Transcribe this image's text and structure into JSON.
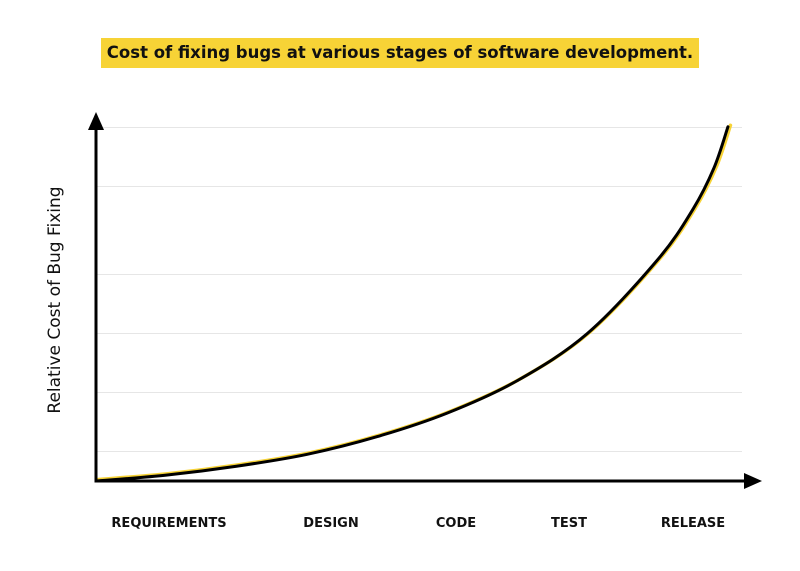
{
  "chart_data": {
    "type": "line",
    "title": "Cost of fixing bugs at various stages of software development.",
    "xlabel": "",
    "ylabel": "Relative Cost of Bug Fixing",
    "categories": [
      "REQUIREMENTS",
      "DESIGN",
      "CODE",
      "TEST",
      "RELEASE"
    ],
    "series": [
      {
        "x": [
          0,
          0.5,
          1,
          1.5,
          2,
          2.5,
          3,
          3.5,
          4,
          4.25,
          4.4,
          4.5
        ],
        "values": [
          0,
          0.2,
          0.5,
          0.9,
          1.5,
          2.3,
          3.4,
          5.0,
          7.5,
          9.2,
          10.6,
          12.0
        ]
      }
    ],
    "xlim": [
      0,
      4.6
    ],
    "ylim": [
      0,
      12.5
    ],
    "y_gridlines": [
      1,
      3,
      5,
      7,
      10,
      12
    ],
    "show_y_ticks": false,
    "grid": true,
    "colors": {
      "title_highlight": "#F7D336",
      "curve_shadow": "#F7D336",
      "curve": "#000000",
      "axis": "#000000",
      "grid": "#E6E6E6"
    }
  }
}
